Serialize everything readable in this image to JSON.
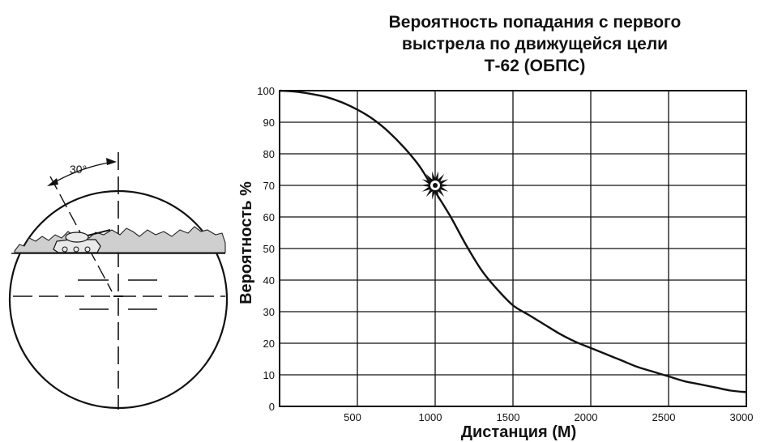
{
  "chart_data": {
    "type": "line",
    "title_lines": [
      "Вероятность попадания с первого",
      "выстрела по движущейся цели",
      "Т-62 (ОБПС)"
    ],
    "xlabel": "Дистанция (М)",
    "ylabel": "Вероятность %",
    "xlim": [
      0,
      3000
    ],
    "ylim": [
      0,
      100
    ],
    "xticks": [
      500,
      1000,
      1500,
      2000,
      2500,
      3000
    ],
    "yticks": [
      0,
      10,
      20,
      30,
      40,
      50,
      60,
      70,
      80,
      90,
      100
    ],
    "grid": true,
    "series": [
      {
        "x": [
          0,
          100,
          200,
          300,
          400,
          500,
          600,
          700,
          800,
          900,
          1000,
          1100,
          1200,
          1300,
          1400,
          1500,
          1600,
          1700,
          1800,
          1900,
          2000,
          2100,
          2200,
          2300,
          2400,
          2500,
          2600,
          2700,
          2800,
          2900,
          3000
        ],
        "y": [
          100,
          99.7,
          99,
          98,
          96.3,
          94,
          91,
          87,
          82,
          76,
          68,
          60,
          51,
          43,
          37,
          32,
          29,
          26,
          23,
          20.5,
          18.5,
          16.5,
          14.5,
          12.5,
          11,
          9.5,
          8,
          7,
          6,
          5,
          4.5
        ]
      }
    ],
    "annotation": {
      "type": "burst-marker",
      "x": 1000,
      "y": 70
    }
  },
  "illustration": {
    "angle_label": "30°"
  }
}
